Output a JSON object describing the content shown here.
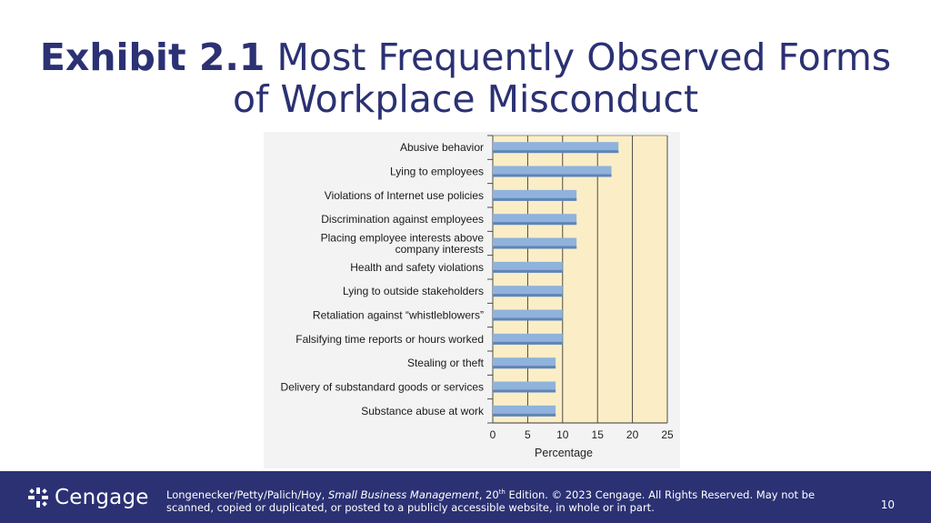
{
  "slide": {
    "title_bold": "Exhibit 2.1",
    "title_rest_line1": "Most Frequently Observed Forms",
    "title_line2": "of Workplace Misconduct",
    "page_number": "10"
  },
  "footer": {
    "brand": "Cengage",
    "credit_authors": "Longenecker/Petty/Palich/Hoy, ",
    "credit_book": "Small Business Management",
    "credit_edition_num": ", 20",
    "credit_edition_sup": "th",
    "credit_rest": " Edition. © 2023 Cengage. All Rights Reserved. May not be scanned, copied or duplicated, or posted to a publicly accessible website, in whole or in part.",
    "colors": {
      "background": "#2b3173",
      "text": "#ffffff"
    }
  },
  "chart_data": {
    "type": "bar",
    "orientation": "horizontal",
    "categories": [
      "Abusive behavior",
      "Lying to employees",
      "Violations of Internet use policies",
      "Discrimination against employees",
      "Placing employee interests above company interests",
      "Health and safety violations",
      "Lying to outside stakeholders",
      "Retaliation against “whistleblowers”",
      "Falsifying time reports or hours worked",
      "Stealing or theft",
      "Delivery of substandard goods or services",
      "Substance abuse at work"
    ],
    "category_lines": [
      [
        "Abusive behavior"
      ],
      [
        "Lying to employees"
      ],
      [
        "Violations of Internet use policies"
      ],
      [
        "Discrimination against employees"
      ],
      [
        "Placing employee interests above",
        "company interests"
      ],
      [
        "Health and safety violations"
      ],
      [
        "Lying to outside stakeholders"
      ],
      [
        "Retaliation against “whistleblowers”"
      ],
      [
        "Falsifying time reports or hours worked"
      ],
      [
        "Stealing or theft"
      ],
      [
        "Delivery of substandard goods or services"
      ],
      [
        "Substance abuse at work"
      ]
    ],
    "values": [
      18,
      17,
      12,
      12,
      12,
      10,
      10,
      10,
      10,
      9,
      9,
      9
    ],
    "xlabel": "Percentage",
    "xlim": [
      0,
      25
    ],
    "xticks": [
      0,
      5,
      10,
      15,
      20,
      25
    ],
    "grid": true,
    "colors": {
      "plot_background": "#fbeec6",
      "bar": "#8fb3dc",
      "bar_edge": "#5f84b9"
    }
  }
}
